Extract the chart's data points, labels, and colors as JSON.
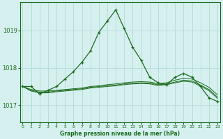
{
  "title": "Graphe pression niveau de la mer (hPa)",
  "background_color": "#d6f0f0",
  "grid_color": "#b8ddd8",
  "line_color": "#1a6b1a",
  "x_ticks": [
    0,
    1,
    2,
    3,
    4,
    5,
    6,
    7,
    8,
    9,
    10,
    11,
    12,
    13,
    14,
    15,
    16,
    17,
    18,
    19,
    20,
    21,
    22,
    23
  ],
  "y_ticks": [
    1017,
    1018,
    1019
  ],
  "ylim": [
    1016.55,
    1019.75
  ],
  "xlim": [
    -0.3,
    23.3
  ],
  "series": [
    {
      "x": [
        0,
        1,
        2,
        3,
        4,
        5,
        6,
        7,
        8,
        9,
        10,
        11,
        12,
        13,
        14,
        15,
        16,
        17,
        18,
        19,
        20,
        21,
        22,
        23
      ],
      "y": [
        1017.5,
        1017.5,
        1017.3,
        1017.4,
        1017.5,
        1017.7,
        1017.9,
        1018.15,
        1018.45,
        1018.95,
        1019.25,
        1019.55,
        1019.05,
        1018.55,
        1018.2,
        1017.75,
        1017.6,
        1017.55,
        1017.75,
        1017.85,
        1017.75,
        1017.5,
        1017.2,
        1017.1
      ],
      "marker": "+"
    },
    {
      "x": [
        0,
        1,
        2,
        3,
        4,
        5,
        6,
        7,
        8,
        9,
        10,
        11,
        12,
        13,
        14,
        15,
        16,
        17,
        18,
        19,
        20,
        21,
        22,
        23
      ],
      "y": [
        1017.5,
        1017.42,
        1017.38,
        1017.38,
        1017.4,
        1017.42,
        1017.44,
        1017.46,
        1017.5,
        1017.52,
        1017.55,
        1017.57,
        1017.6,
        1017.62,
        1017.63,
        1017.62,
        1017.58,
        1017.6,
        1017.67,
        1017.72,
        1017.7,
        1017.6,
        1017.48,
        1017.28
      ],
      "marker": null
    },
    {
      "x": [
        0,
        1,
        2,
        3,
        4,
        5,
        6,
        7,
        8,
        9,
        10,
        11,
        12,
        13,
        14,
        15,
        16,
        17,
        18,
        19,
        20,
        21,
        22,
        23
      ],
      "y": [
        1017.5,
        1017.4,
        1017.35,
        1017.35,
        1017.38,
        1017.4,
        1017.42,
        1017.44,
        1017.48,
        1017.5,
        1017.52,
        1017.54,
        1017.57,
        1017.59,
        1017.6,
        1017.59,
        1017.55,
        1017.57,
        1017.62,
        1017.67,
        1017.65,
        1017.54,
        1017.42,
        1017.22
      ],
      "marker": null
    },
    {
      "x": [
        0,
        1,
        2,
        3,
        4,
        5,
        6,
        7,
        8,
        9,
        10,
        11,
        12,
        13,
        14,
        15,
        16,
        17,
        18,
        19,
        20,
        21,
        22,
        23
      ],
      "y": [
        1017.5,
        1017.38,
        1017.33,
        1017.33,
        1017.36,
        1017.38,
        1017.4,
        1017.42,
        1017.46,
        1017.48,
        1017.5,
        1017.52,
        1017.55,
        1017.57,
        1017.58,
        1017.57,
        1017.53,
        1017.55,
        1017.6,
        1017.64,
        1017.62,
        1017.51,
        1017.39,
        1017.18
      ],
      "marker": null
    }
  ]
}
